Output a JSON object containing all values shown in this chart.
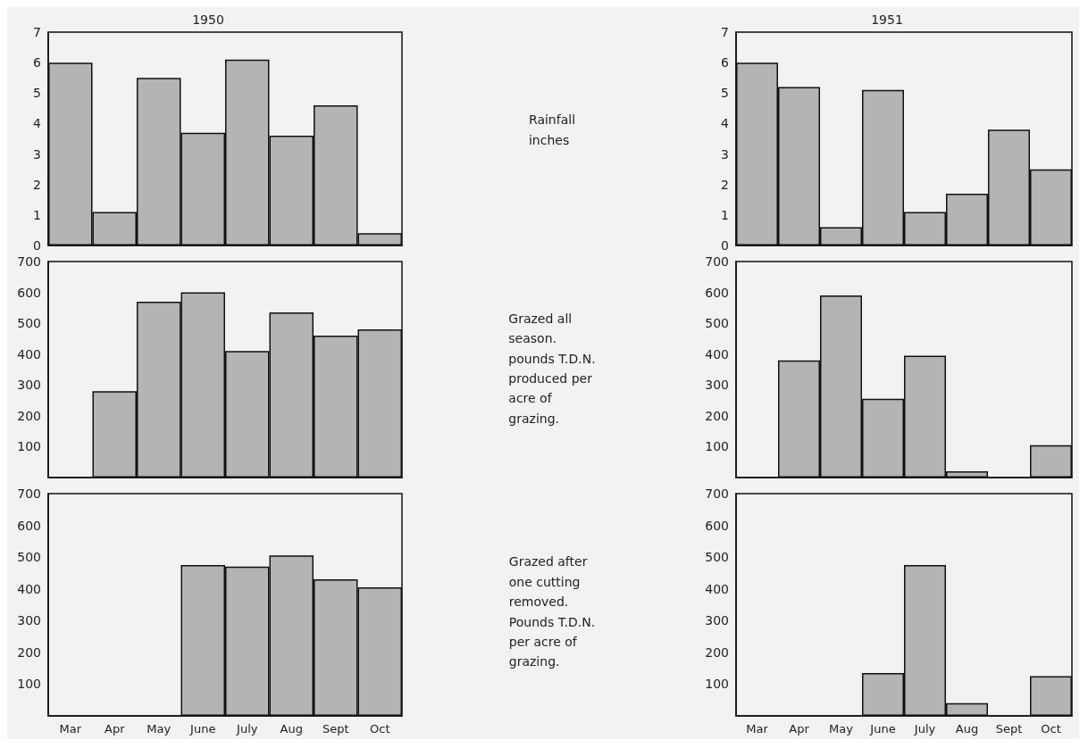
{
  "chart_data": [
    {
      "type": "bar",
      "title": "1950",
      "categories": [
        null,
        null,
        null,
        null,
        null,
        null,
        null,
        null
      ],
      "values": [
        6.0,
        1.1,
        5.5,
        3.7,
        6.1,
        3.6,
        4.6,
        0.4
      ],
      "color": "#b4b4b4",
      "ylim": [
        0,
        7
      ],
      "yticks": [
        0,
        1,
        2,
        3,
        4,
        5,
        6,
        7
      ]
    },
    {
      "type": "other",
      "annotations": [
        "Rainfall\ninches"
      ]
    },
    {
      "type": "bar",
      "title": "1951",
      "categories": [
        null,
        null,
        null,
        null,
        null,
        null,
        null,
        null
      ],
      "values": [
        6.0,
        5.2,
        0.6,
        5.1,
        1.1,
        1.7,
        3.8,
        2.5
      ],
      "color": "#b4b4b4",
      "ylim": [
        0,
        7
      ],
      "yticks": [
        0,
        1,
        2,
        3,
        4,
        5,
        6,
        7
      ]
    },
    {
      "type": "bar",
      "categories": [
        null,
        null,
        null,
        null,
        null,
        null,
        null,
        null
      ],
      "values": [
        null,
        280,
        570,
        600,
        410,
        535,
        460,
        480
      ],
      "color": "#b4b4b4",
      "ylim": [
        0,
        700
      ],
      "yticks": [
        100,
        200,
        300,
        400,
        500,
        600,
        700
      ]
    },
    {
      "type": "other",
      "annotations": [
        "Grazed all\nseason.\npounds T.D.N.\nproduced per\nacre of\ngrazing."
      ]
    },
    {
      "type": "bar",
      "categories": [
        null,
        null,
        null,
        null,
        null,
        null,
        null,
        null
      ],
      "values": [
        null,
        380,
        590,
        255,
        395,
        20,
        null,
        105
      ],
      "color": "#b4b4b4",
      "ylim": [
        0,
        700
      ],
      "yticks": [
        100,
        200,
        300,
        400,
        500,
        600,
        700
      ]
    },
    {
      "type": "bar",
      "categories": [
        "Mar",
        "Apr",
        "May",
        "June",
        "July",
        "Aug",
        "Sept",
        "Oct"
      ],
      "values": [
        null,
        null,
        null,
        475,
        470,
        505,
        430,
        405
      ],
      "color": "#b4b4b4",
      "ylim": [
        0,
        700
      ],
      "yticks": [
        100,
        200,
        300,
        400,
        500,
        600,
        700
      ]
    },
    {
      "type": "other",
      "annotations": [
        "Grazed after\none cutting\nremoved.\nPounds T.D.N.\nper acre of\ngrazing."
      ]
    },
    {
      "type": "bar",
      "categories": [
        "Mar",
        "Apr",
        "May",
        "June",
        "July",
        "Aug",
        "Sept",
        "Oct"
      ],
      "values": [
        null,
        null,
        null,
        135,
        475,
        40,
        null,
        125
      ],
      "color": "#b4b4b4",
      "ylim": [
        0,
        700
      ],
      "yticks": [
        100,
        200,
        300,
        400,
        500,
        600,
        700
      ]
    }
  ]
}
